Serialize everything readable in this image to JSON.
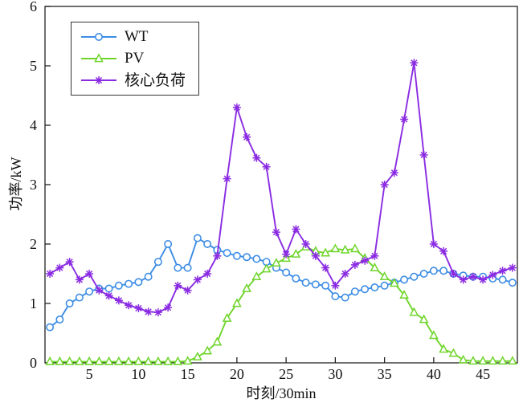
{
  "figure": {
    "background": "#ffffff",
    "frame_color": "#222222"
  },
  "chart_data": {
    "type": "line",
    "title": "",
    "xlabel": "时刻/30min",
    "ylabel": "功率/kW",
    "xlim": [
      0.5,
      48.5
    ],
    "ylim": [
      0,
      6
    ],
    "x_ticks": [
      5,
      10,
      15,
      20,
      25,
      30,
      35,
      40,
      45
    ],
    "y_ticks": [
      0,
      1,
      2,
      3,
      4,
      5,
      6
    ],
    "grid": false,
    "legend_position": "upper-left",
    "x": [
      1,
      2,
      3,
      4,
      5,
      6,
      7,
      8,
      9,
      10,
      11,
      12,
      13,
      14,
      15,
      16,
      17,
      18,
      19,
      20,
      21,
      22,
      23,
      24,
      25,
      26,
      27,
      28,
      29,
      30,
      31,
      32,
      33,
      34,
      35,
      36,
      37,
      38,
      39,
      40,
      41,
      42,
      43,
      44,
      45,
      46,
      47,
      48
    ],
    "series": [
      {
        "name": "WT",
        "color": "#3d8de5",
        "marker": "circle",
        "values": [
          0.6,
          0.73,
          1.0,
          1.1,
          1.2,
          1.25,
          1.25,
          1.3,
          1.33,
          1.36,
          1.45,
          1.7,
          2.0,
          1.6,
          1.6,
          2.1,
          2.0,
          1.9,
          1.85,
          1.8,
          1.78,
          1.75,
          1.7,
          1.6,
          1.52,
          1.42,
          1.35,
          1.32,
          1.3,
          1.12,
          1.1,
          1.2,
          1.24,
          1.27,
          1.3,
          1.35,
          1.4,
          1.45,
          1.5,
          1.55,
          1.55,
          1.5,
          1.47,
          1.45,
          1.45,
          1.42,
          1.4,
          1.35
        ]
      },
      {
        "name": "PV",
        "color": "#6fd52b",
        "marker": "triangle",
        "values": [
          0.02,
          0.02,
          0.02,
          0.02,
          0.02,
          0.02,
          0.02,
          0.02,
          0.02,
          0.02,
          0.02,
          0.02,
          0.02,
          0.02,
          0.03,
          0.1,
          0.2,
          0.35,
          0.75,
          1.0,
          1.25,
          1.45,
          1.58,
          1.68,
          1.76,
          1.83,
          1.95,
          1.88,
          1.85,
          1.92,
          1.9,
          1.92,
          1.76,
          1.6,
          1.45,
          1.34,
          1.14,
          0.85,
          0.73,
          0.46,
          0.23,
          0.16,
          0.05,
          0.03,
          0.03,
          0.03,
          0.03,
          0.03
        ]
      },
      {
        "name": "核心负荷",
        "color": "#8a2be2",
        "marker": "asterisk",
        "values": [
          1.5,
          1.6,
          1.7,
          1.4,
          1.5,
          1.22,
          1.13,
          1.05,
          0.97,
          0.92,
          0.86,
          0.85,
          0.93,
          1.3,
          1.22,
          1.4,
          1.5,
          1.8,
          3.1,
          4.3,
          3.8,
          3.45,
          3.3,
          2.2,
          1.83,
          2.25,
          2.0,
          1.8,
          1.6,
          1.3,
          1.5,
          1.65,
          1.72,
          1.8,
          3.0,
          3.2,
          4.1,
          5.05,
          3.5,
          2.0,
          1.88,
          1.5,
          1.4,
          1.45,
          1.4,
          1.48,
          1.55,
          1.6
        ]
      }
    ]
  }
}
